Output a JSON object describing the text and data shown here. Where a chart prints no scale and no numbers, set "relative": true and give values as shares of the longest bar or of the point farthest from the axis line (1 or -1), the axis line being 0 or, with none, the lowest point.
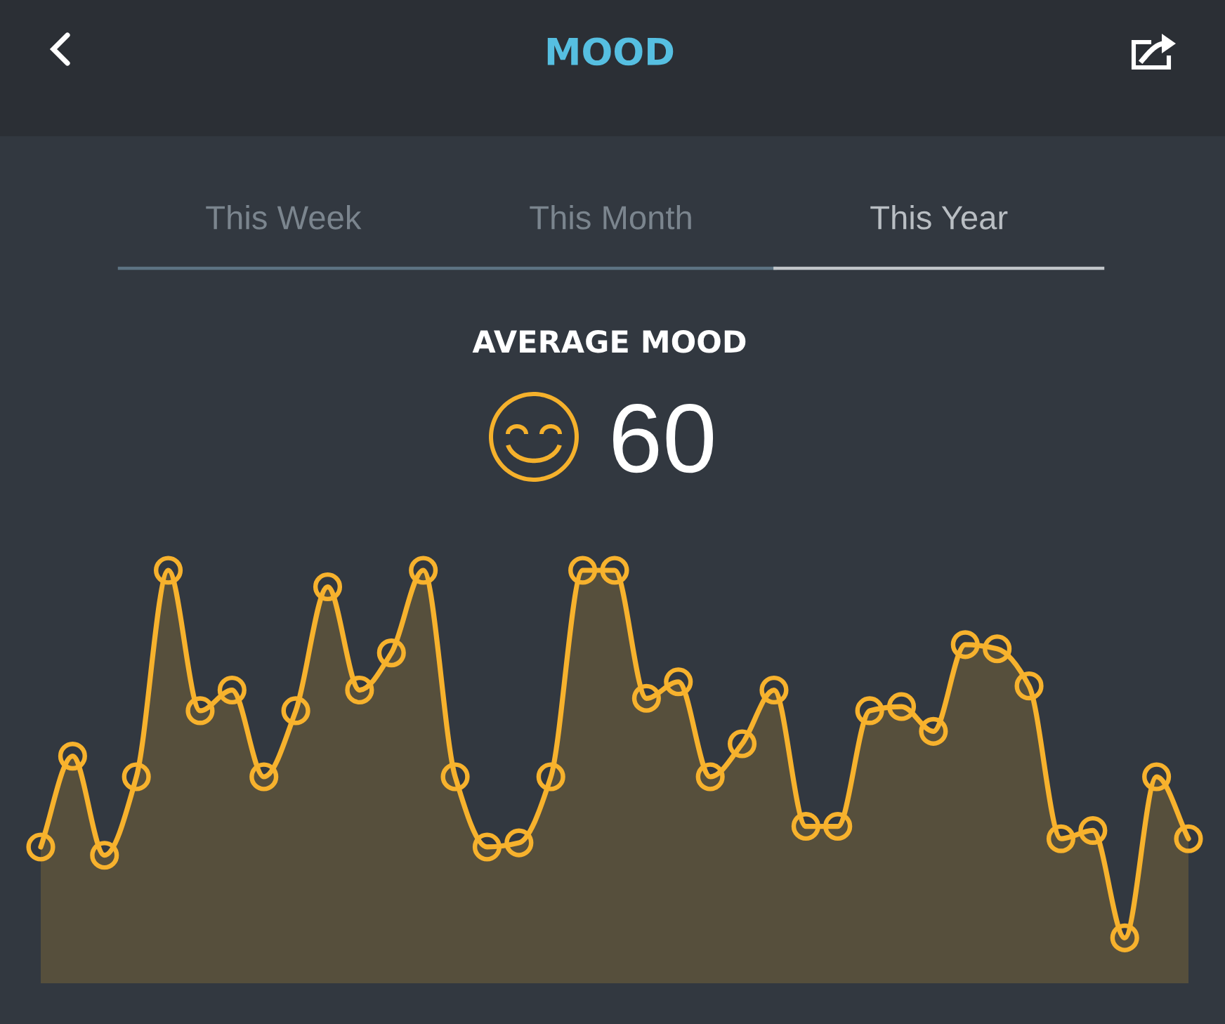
{
  "chart_data": {
    "type": "area",
    "title": "MOOD",
    "subtitle": "AVERAGE MOOD",
    "annotations": [
      "This Week",
      "This Month",
      "This Year",
      "60"
    ],
    "relative": true,
    "marker": "circle",
    "line_style": "solid",
    "categories": [
      null,
      null,
      null,
      null,
      null,
      null,
      null,
      null,
      null,
      null,
      null,
      null,
      null,
      null,
      null,
      null,
      null,
      null,
      null,
      null,
      null,
      null,
      null,
      null,
      null,
      null,
      null,
      null,
      null,
      null,
      null,
      null,
      null,
      null,
      null,
      null,
      null
    ],
    "series": [
      {
        "color": "#f7b22d",
        "values": [
          0.33,
          0.55,
          0.31,
          0.5,
          1.0,
          0.66,
          0.71,
          0.5,
          0.66,
          0.96,
          0.71,
          0.8,
          1.0,
          0.5,
          0.33,
          0.34,
          0.5,
          1.0,
          1.0,
          0.69,
          0.73,
          0.5,
          0.58,
          0.71,
          0.38,
          0.38,
          0.66,
          0.67,
          0.61,
          0.82,
          0.81,
          0.72,
          0.35,
          0.37,
          0.11,
          0.5,
          0.35
        ]
      }
    ]
  }
}
